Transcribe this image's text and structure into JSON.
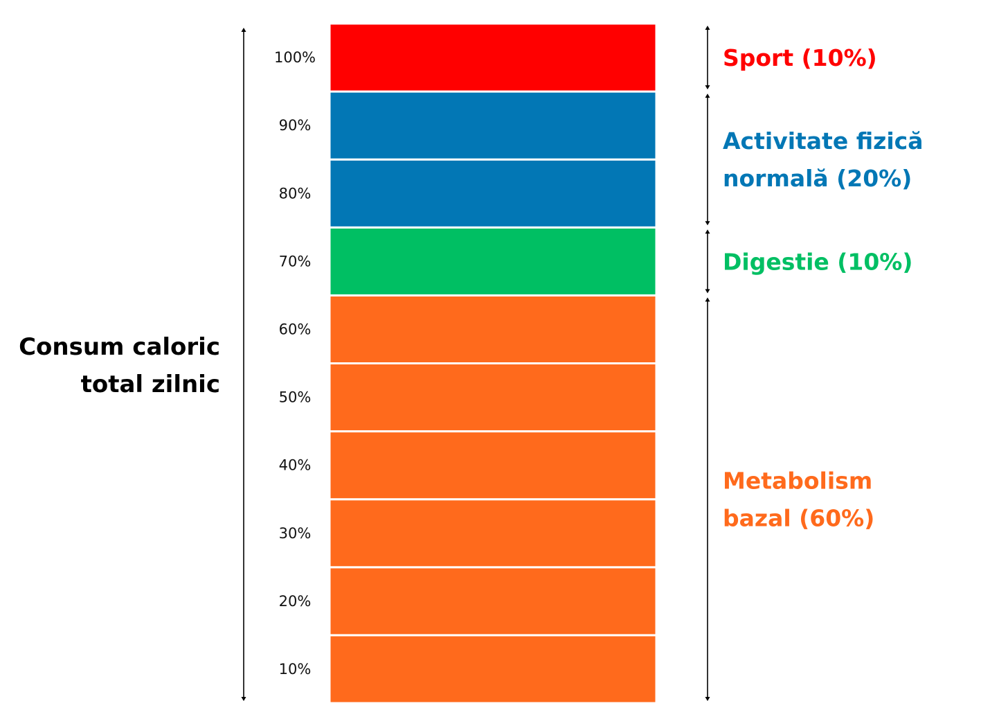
{
  "chart_data": {
    "type": "bar",
    "title": [
      "Consum caloric",
      "total zilnic"
    ],
    "ylim": [
      0,
      100
    ],
    "tick_labels": [
      "100%",
      "90%",
      "80%",
      "70%",
      "60%",
      "50%",
      "40%",
      "30%",
      "20%",
      "10%"
    ],
    "grid": false,
    "series": [
      {
        "name": "Metabolism bazal (60%)",
        "label_lines": [
          "Metabolism",
          "bazal (60%)"
        ],
        "value": 60,
        "color": "#ff6a1c"
      },
      {
        "name": "Digestie (10%)",
        "label_lines": [
          "Digestie (10%)"
        ],
        "value": 10,
        "color": "#00bf63"
      },
      {
        "name": "Activitate fizică normală (20%)",
        "label_lines": [
          "Activitate fizică",
          "normală (20%)"
        ],
        "value": 20,
        "color": "#0277b5"
      },
      {
        "name": "Sport (10%)",
        "label_lines": [
          "Sport (10%)"
        ],
        "value": 10,
        "color": "#ff0000"
      }
    ]
  }
}
